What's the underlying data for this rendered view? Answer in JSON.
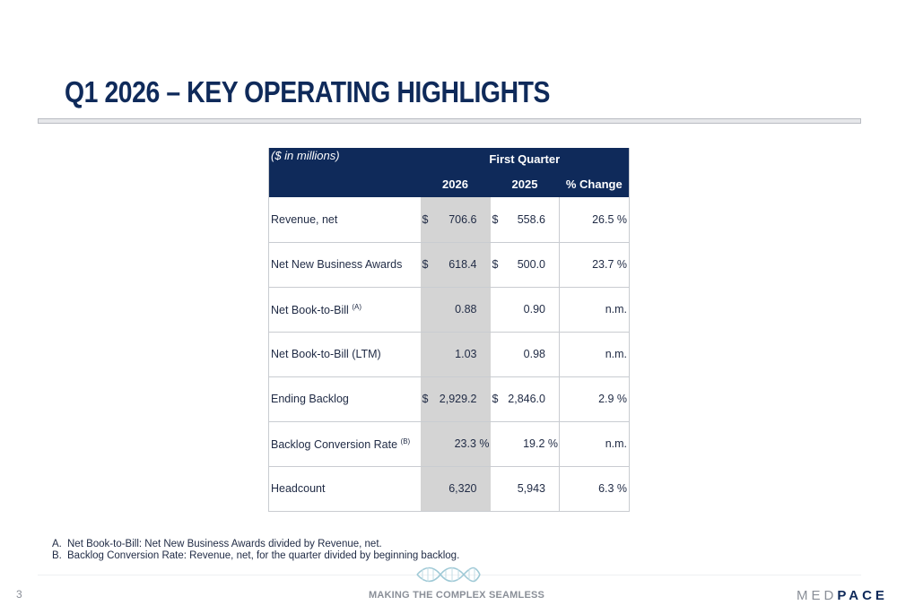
{
  "slide": {
    "title": "Q1 2026 – KEY OPERATING HIGHLIGHTS",
    "page_number": "3",
    "tagline": "MAKING THE COMPLEX SEAMLESS",
    "logo": {
      "part_a": "MED",
      "part_b": "PACE"
    }
  },
  "table": {
    "units": "($ in millions)",
    "group_header": "First Quarter",
    "columns": [
      "2026",
      "2025",
      "% Change"
    ],
    "rows": [
      {
        "label": "Revenue, net",
        "sup": "",
        "cur1": "$",
        "v2026": "706.6",
        "cur2": "$",
        "v2025": "558.6",
        "change": "26.5 %"
      },
      {
        "label": "Net New Business Awards",
        "sup": "",
        "cur1": "$",
        "v2026": "618.4",
        "cur2": "$",
        "v2025": "500.0",
        "change": "23.7 %"
      },
      {
        "label": "Net Book-to-Bill",
        "sup": "(A)",
        "cur1": "",
        "v2026": "0.88",
        "cur2": "",
        "v2025": "0.90",
        "change": "n.m."
      },
      {
        "label": "Net Book-to-Bill (LTM)",
        "sup": "",
        "cur1": "",
        "v2026": "1.03",
        "cur2": "",
        "v2025": "0.98",
        "change": "n.m."
      },
      {
        "label": "Ending Backlog",
        "sup": "",
        "cur1": "$",
        "v2026": "2,929.2",
        "cur2": "$",
        "v2025": "2,846.0",
        "change": "2.9 %"
      },
      {
        "label": "Backlog Conversion Rate",
        "sup": "(B)",
        "cur1": "",
        "v2026": "23.3 %",
        "cur2": "",
        "v2025": "19.2 %",
        "change": "n.m."
      },
      {
        "label": "Headcount",
        "sup": "",
        "cur1": "",
        "v2026": "6,320",
        "cur2": "",
        "v2025": "5,943",
        "change": "6.3 %"
      }
    ]
  },
  "footnotes": [
    {
      "letter": "A.",
      "text": "Net Book-to-Bill: Net New Business Awards divided by Revenue, net."
    },
    {
      "letter": "B.",
      "text": "Backlog Conversion Rate: Revenue, net, for the quarter divided by beginning backlog."
    }
  ],
  "colors": {
    "navy": "#0f2a5a",
    "shade": "#d4d4d4",
    "dna": "#9fc9d6"
  },
  "icons": {
    "dna": "dna-helix-icon"
  }
}
